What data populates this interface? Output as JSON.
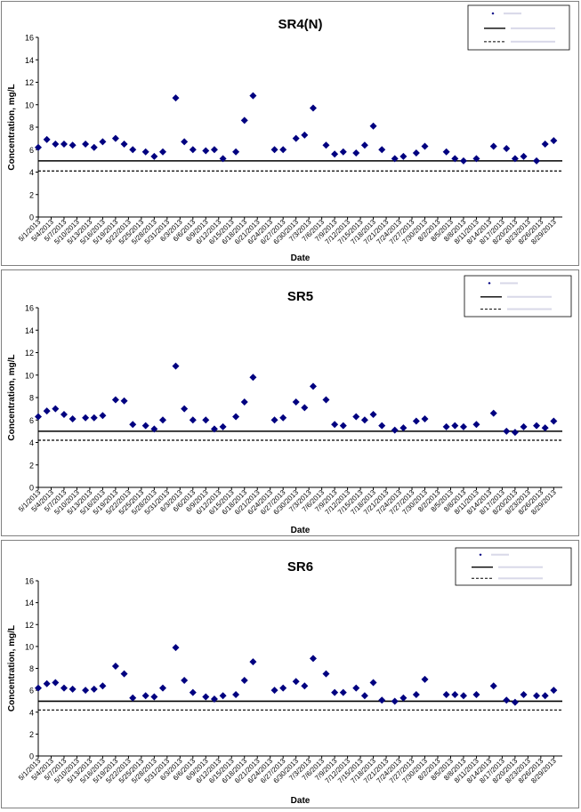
{
  "chart_data": [
    {
      "type": "scatter",
      "title": "SR4(N)",
      "xlabel": "Date",
      "ylabel": "Concentration, mg/L",
      "ylim": [
        0,
        16
      ],
      "yticks": [
        0,
        2,
        4,
        6,
        8,
        10,
        12,
        14,
        16
      ],
      "xlim": [
        "5/1/2013",
        "8/31/2013"
      ],
      "xtick_labels": [
        "5/1/2013",
        "5/4/2013",
        "5/7/2013",
        "5/10/2013",
        "5/13/2013",
        "5/16/2013",
        "5/19/2013",
        "5/22/2013",
        "5/25/2013",
        "5/28/2013",
        "5/31/2013",
        "6/3/2013",
        "6/6/2013",
        "6/9/2013",
        "6/12/2013",
        "6/15/2013",
        "6/18/2013",
        "6/21/2013",
        "6/24/2013",
        "6/27/2013",
        "6/30/2013",
        "7/3/2013",
        "7/6/2013",
        "7/9/2013",
        "7/12/2013",
        "7/15/2013",
        "7/18/2013",
        "7/21/2013",
        "7/24/2013",
        "7/27/2013",
        "7/30/2013",
        "8/2/2013",
        "8/5/2013",
        "8/8/2013",
        "8/11/2013",
        "8/14/2013",
        "8/17/2013",
        "8/20/2013",
        "8/23/2013",
        "8/26/2013",
        "8/29/2013"
      ],
      "series": [
        {
          "marker": "diamond",
          "color": "#000080",
          "x": [
            "5/1/2013",
            "5/3/2013",
            "5/5/2013",
            "5/7/2013",
            "5/9/2013",
            "5/12/2013",
            "5/14/2013",
            "5/16/2013",
            "5/19/2013",
            "5/21/2013",
            "5/23/2013",
            "5/26/2013",
            "5/28/2013",
            "5/30/2013",
            "6/2/2013",
            "6/4/2013",
            "6/6/2013",
            "6/9/2013",
            "6/11/2013",
            "6/13/2013",
            "6/16/2013",
            "6/18/2013",
            "6/20/2013",
            "6/25/2013",
            "6/27/2013",
            "6/30/2013",
            "7/2/2013",
            "7/4/2013",
            "7/7/2013",
            "7/9/2013",
            "7/11/2013",
            "7/14/2013",
            "7/16/2013",
            "7/18/2013",
            "7/20/2013",
            "7/23/2013",
            "7/25/2013",
            "7/28/2013",
            "7/30/2013",
            "8/4/2013",
            "8/6/2013",
            "8/8/2013",
            "8/11/2013",
            "8/15/2013",
            "8/18/2013",
            "8/20/2013",
            "8/22/2013",
            "8/25/2013",
            "8/27/2013",
            "8/29/2013"
          ],
          "y": [
            6.2,
            6.9,
            6.5,
            6.5,
            6.4,
            6.5,
            6.2,
            6.7,
            7.0,
            6.5,
            6.0,
            5.8,
            5.4,
            5.8,
            10.6,
            6.7,
            6.0,
            5.9,
            6.0,
            5.2,
            5.8,
            8.6,
            10.8,
            6.0,
            6.0,
            7.0,
            7.3,
            9.7,
            6.4,
            5.6,
            5.8,
            5.7,
            6.4,
            8.1,
            6.0,
            5.2,
            5.4,
            5.7,
            6.3,
            5.8,
            5.2,
            5.0,
            5.2,
            6.3,
            6.1,
            5.2,
            5.4,
            5.0,
            6.5,
            6.8
          ]
        }
      ],
      "reference_lines": [
        {
          "style": "solid",
          "y": 5.0
        },
        {
          "style": "dashed",
          "y": 4.1
        }
      ],
      "legend": "top-right",
      "grid": false
    },
    {
      "type": "scatter",
      "title": "SR5",
      "xlabel": "Date",
      "ylabel": "Concentration, mg/L",
      "ylim": [
        0,
        16
      ],
      "yticks": [
        0,
        2,
        4,
        6,
        8,
        10,
        12,
        14,
        16
      ],
      "xlim": [
        "5/1/2013",
        "8/31/2013"
      ],
      "xtick_labels": [
        "5/1/2013",
        "5/4/2013",
        "5/7/2013",
        "5/10/2013",
        "5/13/2013",
        "5/16/2013",
        "5/19/2013",
        "5/22/2013",
        "5/25/2013",
        "5/28/2013",
        "5/31/2013",
        "6/3/2013",
        "6/6/2013",
        "6/9/2013",
        "6/12/2013",
        "6/15/2013",
        "6/18/2013",
        "6/21/2013",
        "6/24/2013",
        "6/27/2013",
        "6/30/2013",
        "7/3/2013",
        "7/6/2013",
        "7/9/2013",
        "7/12/2013",
        "7/15/2013",
        "7/18/2013",
        "7/21/2013",
        "7/24/2013",
        "7/27/2013",
        "7/30/2013",
        "8/2/2013",
        "8/5/2013",
        "8/8/2013",
        "8/11/2013",
        "8/14/2013",
        "8/17/2013",
        "8/20/2013",
        "8/23/2013",
        "8/26/2013",
        "8/29/2013"
      ],
      "series": [
        {
          "marker": "diamond",
          "color": "#000080",
          "x": [
            "5/1/2013",
            "5/3/2013",
            "5/5/2013",
            "5/7/2013",
            "5/9/2013",
            "5/12/2013",
            "5/14/2013",
            "5/16/2013",
            "5/19/2013",
            "5/21/2013",
            "5/23/2013",
            "5/26/2013",
            "5/28/2013",
            "5/30/2013",
            "6/2/2013",
            "6/4/2013",
            "6/6/2013",
            "6/9/2013",
            "6/11/2013",
            "6/13/2013",
            "6/16/2013",
            "6/18/2013",
            "6/20/2013",
            "6/25/2013",
            "6/27/2013",
            "6/30/2013",
            "7/2/2013",
            "7/4/2013",
            "7/7/2013",
            "7/9/2013",
            "7/11/2013",
            "7/14/2013",
            "7/16/2013",
            "7/18/2013",
            "7/20/2013",
            "7/23/2013",
            "7/25/2013",
            "7/28/2013",
            "7/30/2013",
            "8/4/2013",
            "8/6/2013",
            "8/8/2013",
            "8/11/2013",
            "8/15/2013",
            "8/18/2013",
            "8/20/2013",
            "8/22/2013",
            "8/25/2013",
            "8/27/2013",
            "8/29/2013"
          ],
          "y": [
            6.3,
            6.8,
            7.0,
            6.5,
            6.1,
            6.2,
            6.2,
            6.4,
            7.8,
            7.7,
            5.6,
            5.5,
            5.2,
            6.0,
            10.8,
            7.0,
            6.0,
            6.0,
            5.2,
            5.4,
            6.3,
            7.6,
            9.8,
            6.0,
            6.2,
            7.6,
            7.1,
            9.0,
            7.8,
            5.6,
            5.5,
            6.3,
            6.0,
            6.5,
            5.5,
            5.1,
            5.3,
            5.9,
            6.1,
            5.4,
            5.5,
            5.4,
            5.6,
            6.6,
            5.0,
            4.9,
            5.4,
            5.5,
            5.3,
            5.9
          ]
        }
      ],
      "reference_lines": [
        {
          "style": "solid",
          "y": 5.0
        },
        {
          "style": "dashed",
          "y": 4.2
        }
      ],
      "legend": "top-right",
      "grid": false
    },
    {
      "type": "scatter",
      "title": "SR6",
      "xlabel": "Date",
      "ylabel": "Concentration, mg/L",
      "ylim": [
        0,
        16
      ],
      "yticks": [
        0,
        2,
        4,
        6,
        8,
        10,
        12,
        14,
        16
      ],
      "xlim": [
        "5/1/2013",
        "8/31/2013"
      ],
      "xtick_labels": [
        "5/1/2013",
        "5/4/2013",
        "5/7/2013",
        "5/10/2013",
        "5/13/2013",
        "5/16/2013",
        "5/19/2013",
        "5/22/2013",
        "5/25/2013",
        "5/28/2013",
        "5/31/2013",
        "6/3/2013",
        "6/6/2013",
        "6/9/2013",
        "6/12/2013",
        "6/15/2013",
        "6/18/2013",
        "6/21/2013",
        "6/24/2013",
        "6/27/2013",
        "6/30/2013",
        "7/3/2013",
        "7/6/2013",
        "7/9/2013",
        "7/12/2013",
        "7/15/2013",
        "7/18/2013",
        "7/21/2013",
        "7/24/2013",
        "7/27/2013",
        "7/30/2013",
        "8/2/2013",
        "8/5/2013",
        "8/8/2013",
        "8/11/2013",
        "8/14/2013",
        "8/17/2013",
        "8/20/2013",
        "8/23/2013",
        "8/26/2013",
        "8/29/2013"
      ],
      "series": [
        {
          "marker": "diamond",
          "color": "#000080",
          "x": [
            "5/1/2013",
            "5/3/2013",
            "5/5/2013",
            "5/7/2013",
            "5/9/2013",
            "5/12/2013",
            "5/14/2013",
            "5/16/2013",
            "5/19/2013",
            "5/21/2013",
            "5/23/2013",
            "5/26/2013",
            "5/28/2013",
            "5/30/2013",
            "6/2/2013",
            "6/4/2013",
            "6/6/2013",
            "6/9/2013",
            "6/11/2013",
            "6/13/2013",
            "6/16/2013",
            "6/18/2013",
            "6/20/2013",
            "6/25/2013",
            "6/27/2013",
            "6/30/2013",
            "7/2/2013",
            "7/4/2013",
            "7/7/2013",
            "7/9/2013",
            "7/11/2013",
            "7/14/2013",
            "7/16/2013",
            "7/18/2013",
            "7/20/2013",
            "7/23/2013",
            "7/25/2013",
            "7/28/2013",
            "7/30/2013",
            "8/4/2013",
            "8/6/2013",
            "8/8/2013",
            "8/11/2013",
            "8/15/2013",
            "8/18/2013",
            "8/20/2013",
            "8/22/2013",
            "8/25/2013",
            "8/27/2013",
            "8/29/2013"
          ],
          "y": [
            6.2,
            6.6,
            6.7,
            6.2,
            6.1,
            6.0,
            6.1,
            6.4,
            8.2,
            7.5,
            5.3,
            5.5,
            5.4,
            6.2,
            9.9,
            6.9,
            5.8,
            5.4,
            5.2,
            5.5,
            5.6,
            6.9,
            8.6,
            6.0,
            6.2,
            6.8,
            6.4,
            8.9,
            7.5,
            5.8,
            5.8,
            6.2,
            5.5,
            6.7,
            5.1,
            5.0,
            5.3,
            5.6,
            7.0,
            5.6,
            5.6,
            5.5,
            5.6,
            6.4,
            5.1,
            4.9,
            5.6,
            5.5,
            5.5,
            6.0
          ]
        }
      ],
      "reference_lines": [
        {
          "style": "solid",
          "y": 5.0
        },
        {
          "style": "dashed",
          "y": 4.2
        }
      ],
      "legend": "top-right",
      "grid": false
    }
  ]
}
